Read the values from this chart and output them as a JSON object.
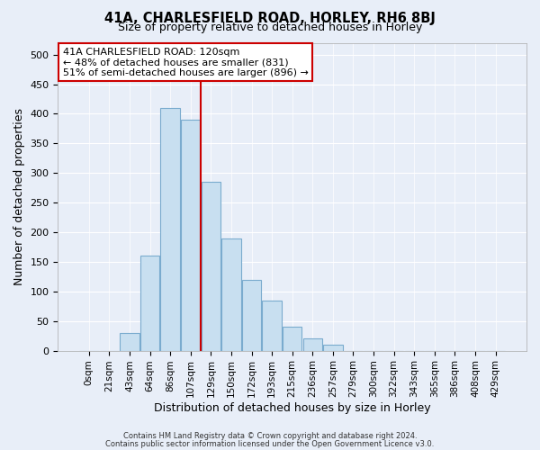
{
  "title": "41A, CHARLESFIELD ROAD, HORLEY, RH6 8BJ",
  "subtitle": "Size of property relative to detached houses in Horley",
  "xlabel": "Distribution of detached houses by size in Horley",
  "ylabel": "Number of detached properties",
  "bar_labels": [
    "0sqm",
    "21sqm",
    "43sqm",
    "64sqm",
    "86sqm",
    "107sqm",
    "129sqm",
    "150sqm",
    "172sqm",
    "193sqm",
    "215sqm",
    "236sqm",
    "257sqm",
    "279sqm",
    "300sqm",
    "322sqm",
    "343sqm",
    "365sqm",
    "386sqm",
    "408sqm",
    "429sqm"
  ],
  "bar_heights": [
    0,
    0,
    30,
    160,
    410,
    390,
    285,
    190,
    120,
    85,
    40,
    20,
    10,
    0,
    0,
    0,
    0,
    0,
    0,
    0,
    0
  ],
  "bar_color": "#c8dff0",
  "bar_edge_color": "#7aabce",
  "vline_x_index": 5.5,
  "vline_color": "#cc0000",
  "annotation_title": "41A CHARLESFIELD ROAD: 120sqm",
  "annotation_line1": "← 48% of detached houses are smaller (831)",
  "annotation_line2": "51% of semi-detached houses are larger (896) →",
  "annotation_box_facecolor": "#ffffff",
  "annotation_box_edgecolor": "#cc0000",
  "ylim": [
    0,
    520
  ],
  "yticks": [
    0,
    50,
    100,
    150,
    200,
    250,
    300,
    350,
    400,
    450,
    500
  ],
  "footer_line1": "Contains HM Land Registry data © Crown copyright and database right 2024.",
  "footer_line2": "Contains public sector information licensed under the Open Government Licence v3.0.",
  "bg_color": "#e8eef8",
  "plot_bg_color": "#e8eef8",
  "grid_color": "#ffffff"
}
